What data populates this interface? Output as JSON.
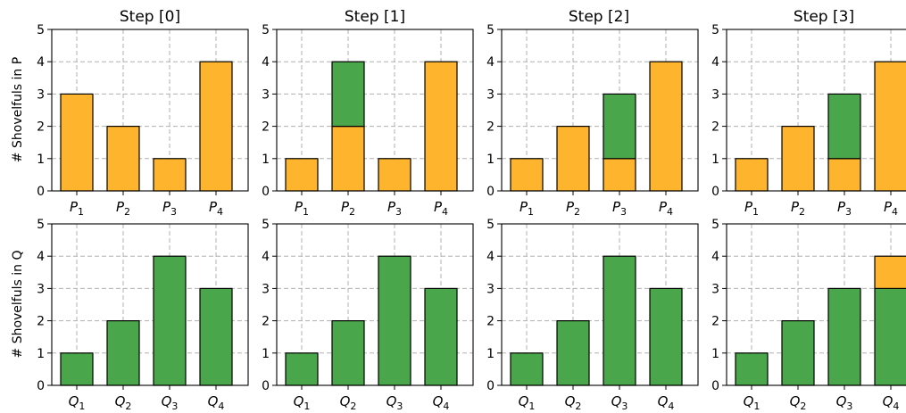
{
  "colors": {
    "orange": "#ffb42e",
    "green": "#4aa64a"
  },
  "row_labels": [
    "# Shovelfuls in P",
    "# Shovelfuls in Q"
  ],
  "step_titles": [
    "Step [0]",
    "Step [1]",
    "Step [2]",
    "Step [3]"
  ],
  "chart_data": {
    "type": "bar",
    "layout": "grid 2 rows x 4 columns, stacked bars",
    "ylim": [
      0,
      5
    ],
    "yticks": [
      0,
      1,
      2,
      3,
      4,
      5
    ],
    "grid": true,
    "panels": [
      {
        "row": 0,
        "col": 0,
        "title": "Step [0]",
        "ylabel": "# Shovelfuls in P",
        "categories": [
          "P1",
          "P2",
          "P3",
          "P4"
        ],
        "series": [
          {
            "color": "orange",
            "values": [
              3,
              2,
              1,
              4
            ]
          },
          {
            "color": "green",
            "values": [
              0,
              0,
              0,
              0
            ]
          }
        ]
      },
      {
        "row": 0,
        "col": 1,
        "title": "Step [1]",
        "ylabel": "",
        "categories": [
          "P1",
          "P2",
          "P3",
          "P4"
        ],
        "series": [
          {
            "color": "orange",
            "values": [
              1,
              2,
              1,
              4
            ]
          },
          {
            "color": "green",
            "values": [
              0,
              2,
              0,
              0
            ]
          }
        ]
      },
      {
        "row": 0,
        "col": 2,
        "title": "Step [2]",
        "ylabel": "",
        "categories": [
          "P1",
          "P2",
          "P3",
          "P4"
        ],
        "series": [
          {
            "color": "orange",
            "values": [
              1,
              2,
              1,
              4
            ]
          },
          {
            "color": "green",
            "values": [
              0,
              0,
              2,
              0
            ]
          }
        ]
      },
      {
        "row": 0,
        "col": 3,
        "title": "Step [3]",
        "ylabel": "",
        "categories": [
          "P1",
          "P2",
          "P3",
          "P4"
        ],
        "series": [
          {
            "color": "orange",
            "values": [
              1,
              2,
              1,
              4
            ]
          },
          {
            "color": "green",
            "values": [
              0,
              0,
              2,
              0
            ]
          }
        ]
      },
      {
        "row": 1,
        "col": 0,
        "title": "",
        "ylabel": "# Shovelfuls in Q",
        "categories": [
          "Q1",
          "Q2",
          "Q3",
          "Q4"
        ],
        "series": [
          {
            "color": "green",
            "values": [
              1,
              2,
              4,
              3
            ]
          },
          {
            "color": "orange",
            "values": [
              0,
              0,
              0,
              0
            ]
          }
        ]
      },
      {
        "row": 1,
        "col": 1,
        "title": "",
        "ylabel": "",
        "categories": [
          "Q1",
          "Q2",
          "Q3",
          "Q4"
        ],
        "series": [
          {
            "color": "green",
            "values": [
              1,
              2,
              4,
              3
            ]
          },
          {
            "color": "orange",
            "values": [
              0,
              0,
              0,
              0
            ]
          }
        ]
      },
      {
        "row": 1,
        "col": 2,
        "title": "",
        "ylabel": "",
        "categories": [
          "Q1",
          "Q2",
          "Q3",
          "Q4"
        ],
        "series": [
          {
            "color": "green",
            "values": [
              1,
              2,
              4,
              3
            ]
          },
          {
            "color": "orange",
            "values": [
              0,
              0,
              0,
              0
            ]
          }
        ]
      },
      {
        "row": 1,
        "col": 3,
        "title": "",
        "ylabel": "",
        "categories": [
          "Q1",
          "Q2",
          "Q3",
          "Q4"
        ],
        "series": [
          {
            "color": "green",
            "values": [
              1,
              2,
              3,
              3
            ]
          },
          {
            "color": "orange",
            "values": [
              0,
              0,
              0,
              1
            ]
          }
        ]
      }
    ]
  }
}
